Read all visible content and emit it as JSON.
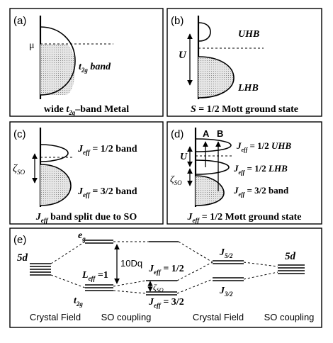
{
  "panels": {
    "a": {
      "tag": "(a)",
      "mu": "μ",
      "band_t": "t",
      "band_sub": "2g",
      "band_word": " band",
      "caption_pre": "wide ",
      "caption_t": "t",
      "caption_sub": "2g",
      "caption_post": "–band Metal"
    },
    "b": {
      "tag": "(b)",
      "uhb": "UHB",
      "lhb": "LHB",
      "u": "U",
      "caption_s": "S",
      "caption_post": " = 1/2 Mott ground state"
    },
    "c": {
      "tag": "(c)",
      "zeta": "ζ",
      "zeta_sub": "SO",
      "upper_j": "J",
      "upper_sub": "eff",
      "upper_val": " = 1/2 band",
      "lower_j": "J",
      "lower_sub": "eff",
      "lower_val": " = 3/2 band",
      "caption_j": "J",
      "caption_sub": "eff",
      "caption_post": " band split due to SO"
    },
    "d": {
      "tag": "(d)",
      "arrow_a": "A",
      "arrow_b": "B",
      "u": "U",
      "zeta": "ζ",
      "zeta_sub": "SO",
      "l1_j": "J",
      "l1_sub": "eff",
      "l1_val": " = 1/2 ",
      "l1_tag": "UHB",
      "l2_j": "J",
      "l2_sub": "eff",
      "l2_val": " = 1/2 ",
      "l2_tag": "LHB",
      "l3_j": "J",
      "l3_sub": "eff",
      "l3_val": " = 3/2 band",
      "caption_j": "J",
      "caption_sub": "eff",
      "caption_post": " = 1/2 Mott ground state"
    },
    "e": {
      "tag": "(e)",
      "left_5d": "5d",
      "right_5d": "5d",
      "eg": "e",
      "eg_sub": "g",
      "t2g": "t",
      "t2g_sub": "2g",
      "dq": "10Dq",
      "leff_l": "L",
      "leff_sub": "eff",
      "leff_val": " =1",
      "j12_j": "J",
      "j12_sub": "eff",
      "j12_val": " = 1/2",
      "j32_j": "J",
      "j32_sub": "eff",
      "j32_val": " = 3/2",
      "zeta": "ζ",
      "zeta_sub": "SO",
      "j52r": "J",
      "j52r_sub": "5/2",
      "j32r": "J",
      "j32r_sub": "3/2",
      "bottom_labels": [
        "Crystal Field",
        "SO coupling",
        "Crystal Field",
        "SO coupling"
      ]
    }
  },
  "colors": {
    "line": "#000000",
    "band_fill": "#dcdcdc",
    "background": "#ffffff"
  }
}
